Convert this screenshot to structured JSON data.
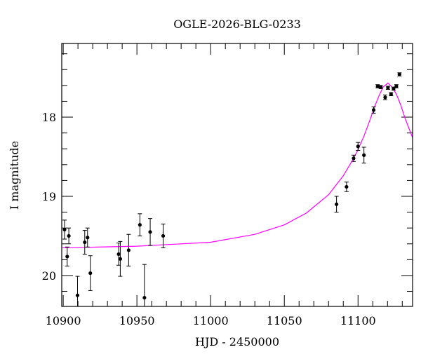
{
  "chart_data": {
    "type": "scatter",
    "title": "OGLE-2026-BLG-0233",
    "xlabel": "HJD - 2450000",
    "ylabel": "I magnitude",
    "xlim": [
      10899,
      11137
    ],
    "ylim": [
      17.07,
      20.39
    ],
    "y_inverted": true,
    "x_major_ticks": [
      10900,
      10950,
      11000,
      11050,
      11100
    ],
    "x_minor_step": 10,
    "y_major_ticks": [
      18,
      19,
      20
    ],
    "y_minor_step": 0.2,
    "grid": false,
    "colors": {
      "points": "#000000",
      "model": "#ff00ff"
    },
    "points": [
      {
        "x": 10900.9,
        "y": 19.42,
        "err": 0.12
      },
      {
        "x": 10902.7,
        "y": 19.76,
        "err": 0.12
      },
      {
        "x": 10903.8,
        "y": 19.5,
        "err": 0.1
      },
      {
        "x": 10909.7,
        "y": 20.25,
        "err": 0.24
      },
      {
        "x": 10914.6,
        "y": 19.58,
        "err": 0.15
      },
      {
        "x": 10916.5,
        "y": 19.52,
        "err": 0.12
      },
      {
        "x": 10918.4,
        "y": 19.97,
        "err": 0.22
      },
      {
        "x": 10937.6,
        "y": 19.73,
        "err": 0.14
      },
      {
        "x": 10938.7,
        "y": 19.79,
        "err": 0.22
      },
      {
        "x": 10944.4,
        "y": 19.68,
        "err": 0.2
      },
      {
        "x": 10952.0,
        "y": 19.36,
        "err": 0.14
      },
      {
        "x": 10955.1,
        "y": 20.28,
        "err": 0.42
      },
      {
        "x": 10959.0,
        "y": 19.45,
        "err": 0.17
      },
      {
        "x": 10967.8,
        "y": 19.5,
        "err": 0.15
      },
      {
        "x": 11085.4,
        "y": 19.1,
        "err": 0.1
      },
      {
        "x": 11092.2,
        "y": 18.88,
        "err": 0.06
      },
      {
        "x": 11097.0,
        "y": 18.52,
        "err": 0.04
      },
      {
        "x": 11100.0,
        "y": 18.37,
        "err": 0.05
      },
      {
        "x": 11104.0,
        "y": 18.48,
        "err": 0.1
      },
      {
        "x": 11110.6,
        "y": 17.91,
        "err": 0.04
      },
      {
        "x": 11113.3,
        "y": 17.61,
        "err": 0.02
      },
      {
        "x": 11115.4,
        "y": 17.62,
        "err": 0.02
      },
      {
        "x": 11118.4,
        "y": 17.75,
        "err": 0.03
      },
      {
        "x": 11120.3,
        "y": 17.63,
        "err": 0.02
      },
      {
        "x": 11122.4,
        "y": 17.71,
        "err": 0.02
      },
      {
        "x": 11124.1,
        "y": 17.64,
        "err": 0.02
      },
      {
        "x": 11126.0,
        "y": 17.61,
        "err": 0.02
      },
      {
        "x": 11128.1,
        "y": 17.46,
        "err": 0.02
      }
    ],
    "model_curve": [
      [
        10899,
        19.65
      ],
      [
        10950,
        19.63
      ],
      [
        11000,
        19.58
      ],
      [
        11030,
        19.48
      ],
      [
        11050,
        19.36
      ],
      [
        11065,
        19.21
      ],
      [
        11080,
        18.98
      ],
      [
        11090,
        18.74
      ],
      [
        11097,
        18.52
      ],
      [
        11100,
        18.41
      ],
      [
        11104,
        18.24
      ],
      [
        11108,
        18.04
      ],
      [
        11111,
        17.88
      ],
      [
        11114,
        17.74
      ],
      [
        11117,
        17.62
      ],
      [
        11120.3,
        17.57
      ],
      [
        11123,
        17.62
      ],
      [
        11126,
        17.71
      ],
      [
        11129,
        17.85
      ],
      [
        11132,
        18.02
      ],
      [
        11134.5,
        18.14
      ],
      [
        11137,
        18.26
      ]
    ]
  }
}
